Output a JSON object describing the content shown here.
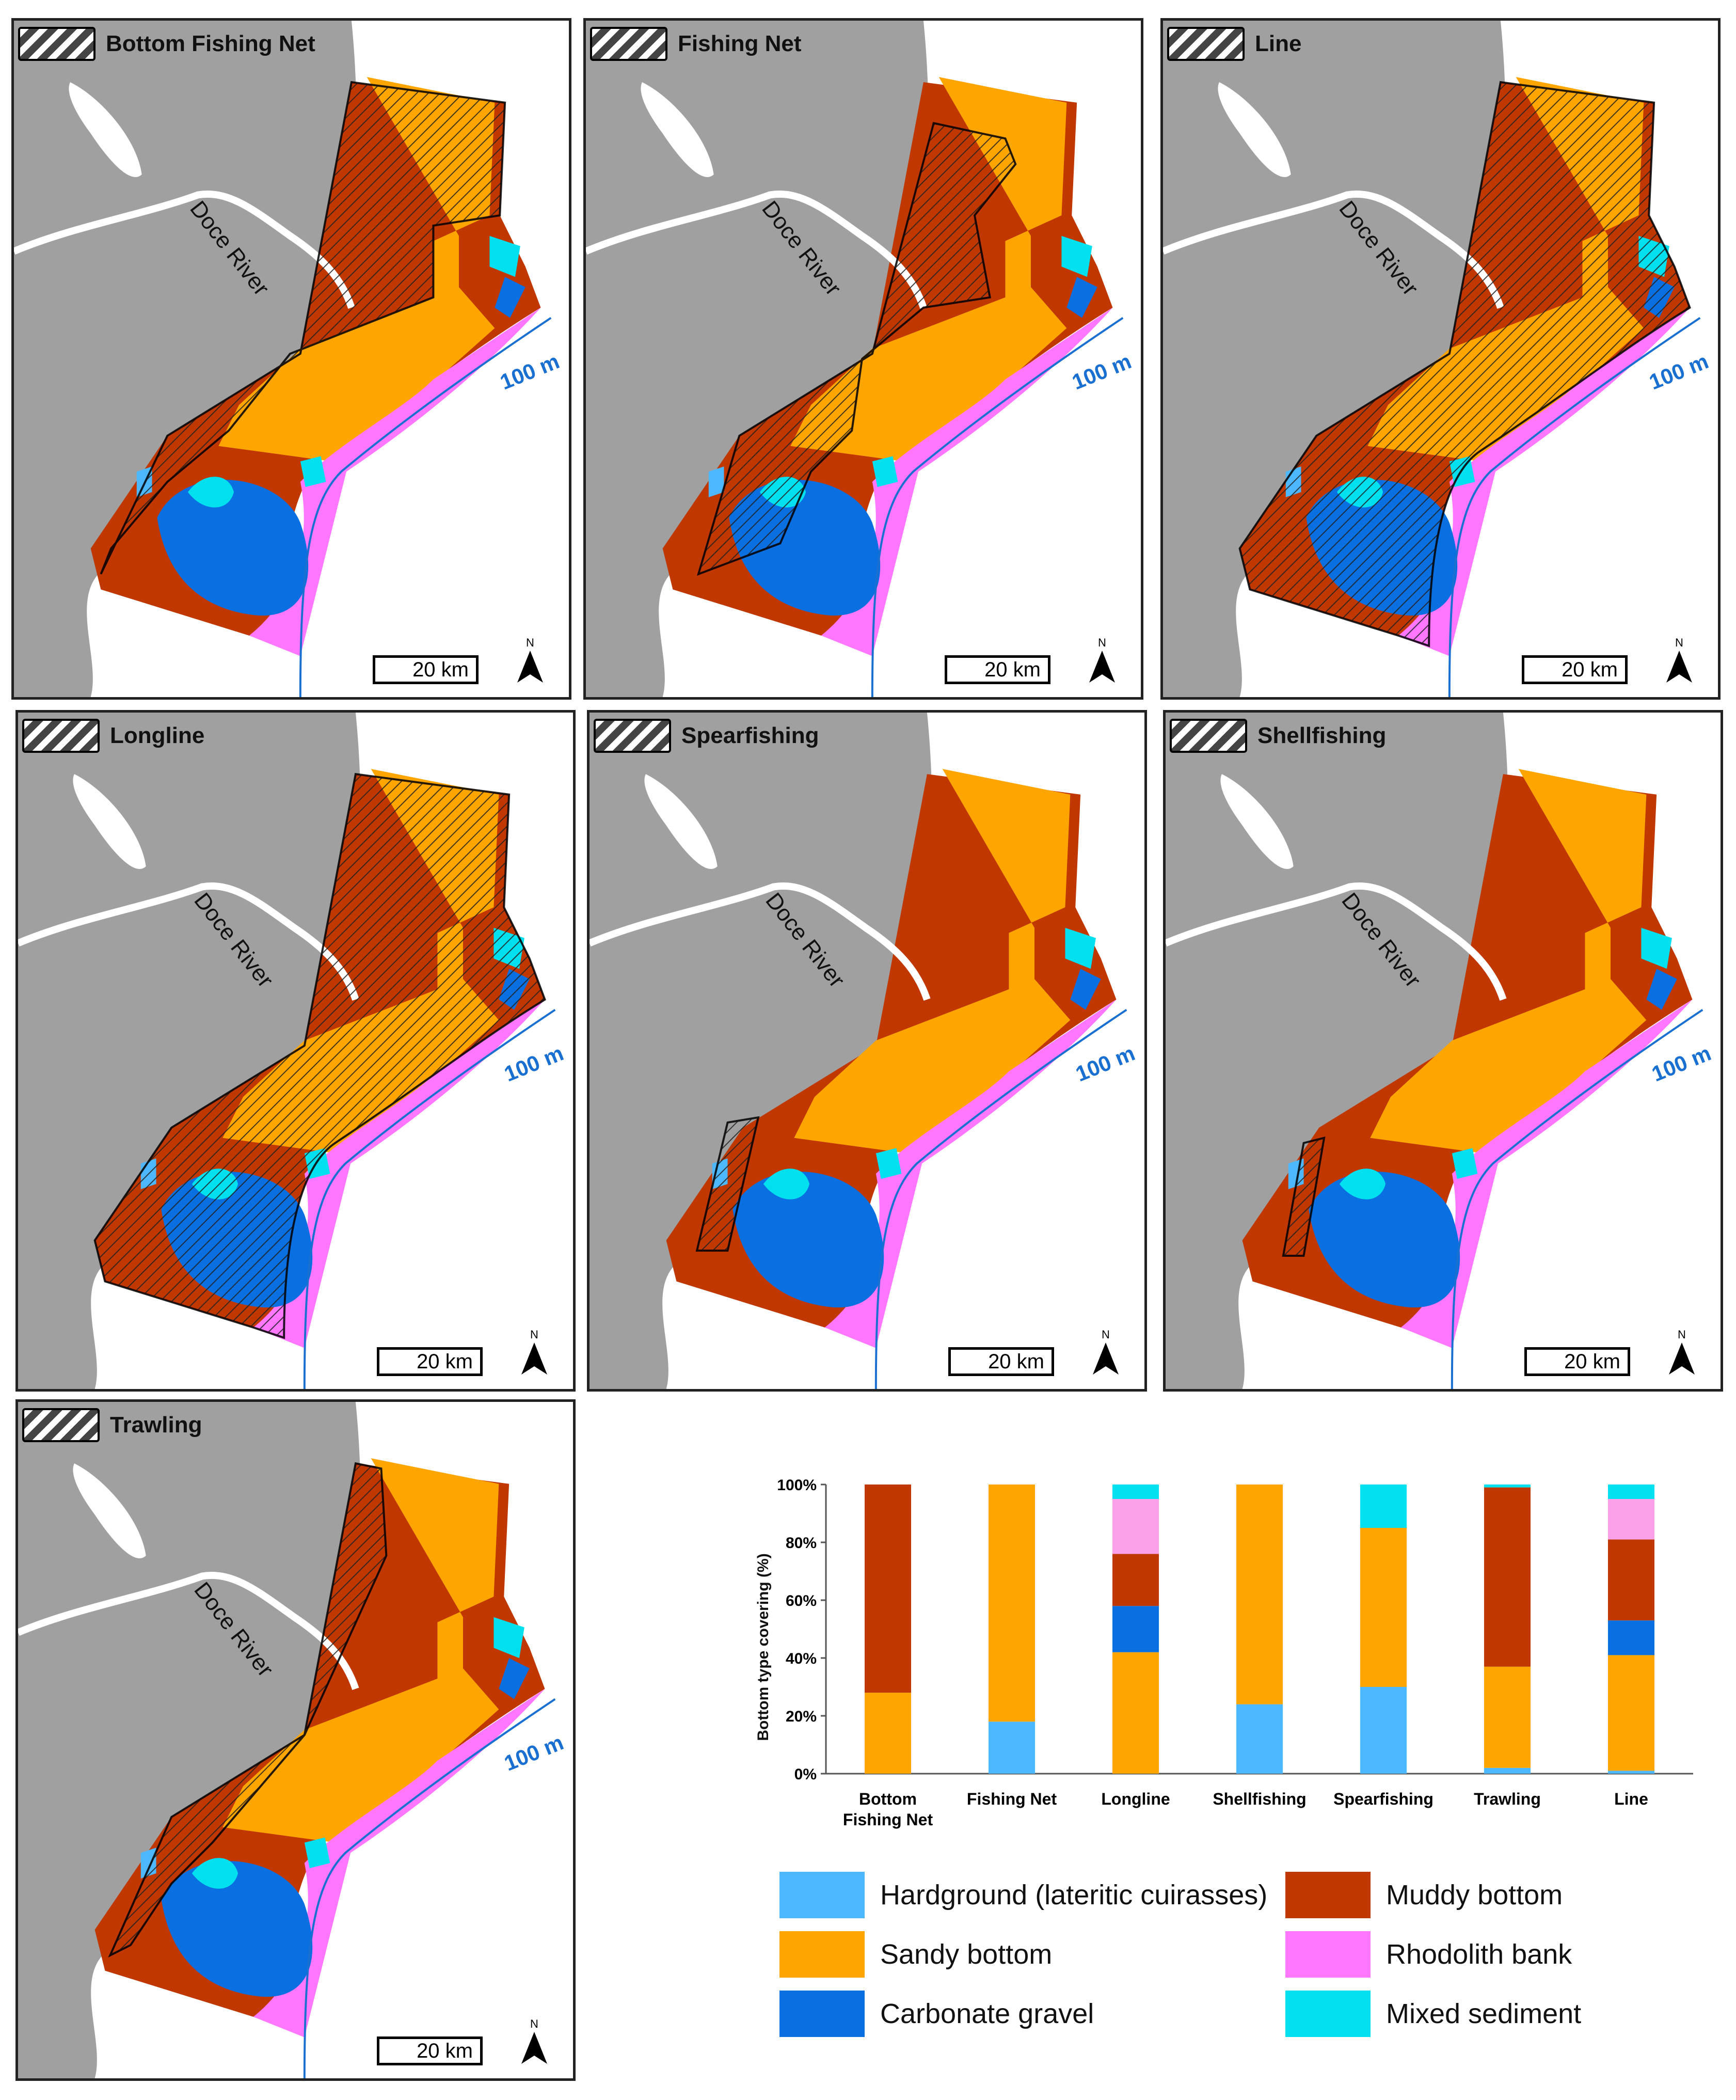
{
  "panels": [
    {
      "title": "Bottom Fishing Net",
      "hatch": "bfn"
    },
    {
      "title": "Fishing Net",
      "hatch": "fn"
    },
    {
      "title": "Line",
      "hatch": "all"
    },
    {
      "title": "Longline",
      "hatch": "all"
    },
    {
      "title": "Spearfishing",
      "hatch": "coast"
    },
    {
      "title": "Shellfishing",
      "hatch": "coast-small"
    },
    {
      "title": "Trawling",
      "hatch": "trawl"
    }
  ],
  "map_labels": {
    "river": "Doce River",
    "depth": "100 m",
    "scale": "20 km",
    "north": "N"
  },
  "colors": {
    "hardground": "#4db8ff",
    "sandy": "#ffa500",
    "carbonate": "#0a6fe0",
    "muddy": "#c03800",
    "rhodolith": "#ff77ff",
    "mixed": "#00e0ee",
    "land": "#a0a0a0"
  },
  "chart_data": {
    "type": "bar",
    "stacked": true,
    "categories": [
      "Bottom Fishing Net",
      "Fishing Net",
      "Longline",
      "Shellfishing",
      "Spearfishing",
      "Trawling",
      "Line"
    ],
    "ylabel": "Bottom type covering (%)",
    "yticks": [
      "0%",
      "20%",
      "40%",
      "60%",
      "80%",
      "100%"
    ],
    "ylim": [
      0,
      100
    ],
    "series": [
      {
        "name": "Hardground (lateritic cuirasses)",
        "color": "#4db8ff",
        "values": [
          0,
          18,
          0,
          24,
          30,
          2,
          1
        ]
      },
      {
        "name": "Sandy bottom",
        "color": "#ffa500",
        "values": [
          28,
          82,
          42,
          76,
          55,
          35,
          40
        ]
      },
      {
        "name": "Carbonate gravel",
        "color": "#0a6fe0",
        "values": [
          0,
          0,
          16,
          0,
          0,
          0,
          12
        ]
      },
      {
        "name": "Muddy bottom",
        "color": "#c03800",
        "values": [
          72,
          0,
          18,
          0,
          0,
          62,
          28
        ]
      },
      {
        "name": "Rhodolith bank",
        "color": "#f9a0e8",
        "values": [
          0,
          0,
          19,
          0,
          0,
          0,
          14
        ]
      },
      {
        "name": "Mixed sediment",
        "color": "#00e0ee",
        "values": [
          0,
          0,
          5,
          0,
          15,
          1,
          5
        ]
      }
    ],
    "legend_position": "bottom"
  },
  "legend": [
    {
      "label": "Hardground (lateritic cuirasses)",
      "color": "#4db8ff"
    },
    {
      "label": "Muddy bottom",
      "color": "#c03800"
    },
    {
      "label": "Sandy bottom",
      "color": "#ffa500"
    },
    {
      "label": "Rhodolith bank",
      "color": "#ff77ff"
    },
    {
      "label": "Carbonate gravel",
      "color": "#0a6fe0"
    },
    {
      "label": "Mixed sediment",
      "color": "#00e0ee"
    }
  ]
}
